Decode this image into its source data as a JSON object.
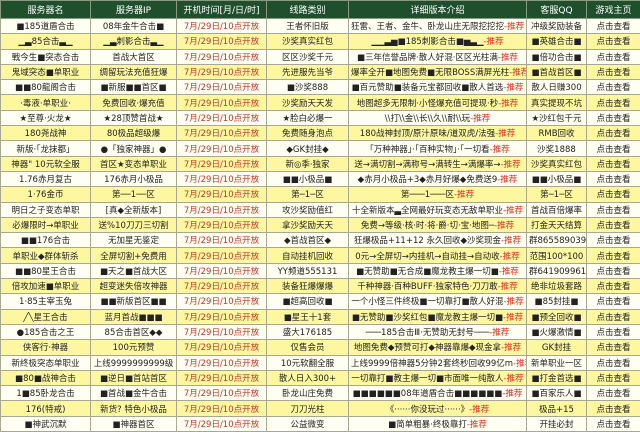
{
  "headers": [
    "服务器名",
    "服务器IP",
    "开机时间[月/日/时]",
    "线路类别",
    "详细版本介绍",
    "客服QQ",
    "游戏主页"
  ],
  "colors": {
    "header_bg": "#1f4f2c",
    "row_yellow": "#fdf8a0",
    "row_light": "#fffef2",
    "date": "#c0392b",
    "recommend": "#e0301e"
  },
  "recommend_label": "-推荐",
  "rows": [
    {
      "name": "■185道盾合击",
      "ip": "08年金牛合击■",
      "time": "7月/29日/10点开放",
      "line": "王者怀旧版",
      "desc": "狂雷、王者、金牛、卧龙山庄无限挖挖挖",
      "qq": "冲级奖励装备",
      "home": "点击查看"
    },
    {
      "name": "▁▃85合击▃▁",
      "ip": "▁▃刺影合击▃▁",
      "time": "7月/29日/10点开放",
      "line": "沙奖真实红包",
      "desc": "▁▁▃▅■185刺影合击■▅▃▁",
      "qq": "■英雄合击■",
      "home": "点击查看"
    },
    {
      "name": "戰今生■突态合击",
      "ip": "首战大首区",
      "time": "7月/29日/10点开放",
      "line": "区区沙奖千元",
      "desc": "■三年信誉品牌·散人好混·区区光柱满",
      "qq": "■倍功合击■",
      "home": "点击查看"
    },
    {
      "name": "鬼域突态■单职业",
      "ip": "绸留玩法充值狂爆",
      "time": "7月/29日/10点开放",
      "line": "先进服先当爷",
      "desc": "爆率全开■地图免费■无限BOSS满屏光柱",
      "qq": "■首战首区■",
      "home": "点击查看"
    },
    {
      "name": "■■80龍阁合击",
      "ip": "■新服■■首区■",
      "time": "7月/29日/10点开放",
      "line": "■沙奖888",
      "desc": "■百元赞助■装备元宝都回收■散人首选",
      "qq": "散人日赚300",
      "home": "点击查看"
    },
    {
      "name": "·毒液·单职业·",
      "ip": "免费回收·爆充值",
      "time": "7月/29日/10点开放",
      "line": "沙奖励天天发",
      "desc": "地图超多无限制·小怪爆充值可提现·秒",
      "qq": "真实提现不坑",
      "home": "点击查看"
    },
    {
      "name": "★至尊·火龙★",
      "ip": "★28顶赞首战★",
      "time": "7月/29日/10点开放",
      "line": "★脸白必爆一",
      "desc": "\\\\打\\\\金\\\\长\\\\久\\\\耐\\\\玩",
      "qq": "★沙红包千元",
      "home": "点击查看"
    },
    {
      "name": "180尧战神",
      "ip": "80极品超级爆",
      "time": "7月/29日/10点开放",
      "line": "免费随身泡点",
      "desc": "180战神封顶/原汁原味/道双虎/法强",
      "qq": "RMB回收",
      "home": "点击查看"
    },
    {
      "name": "新版·「龙抹都」",
      "ip": "●「独家神器」●",
      "time": "7月/29日/10点开放",
      "line": "◆GK封挂◆",
      "desc": "「万种神器」·「百种实物」·「一切看",
      "qq": "沙奖1888",
      "home": "点击查看"
    },
    {
      "name": "神器\" 10元软全服",
      "ip": "首区★变态单职业",
      "time": "7月/29日/10点开放",
      "line": "新◎季·独家",
      "desc": "送→满切割→满称号→满转生→满爆率→",
      "qq": "沙奖真实红包",
      "home": "点击查看"
    },
    {
      "name": "1.76赤月复古",
      "ip": "176赤月小极品",
      "time": "7月/29日/10点开放",
      "line": "■■小极品■",
      "desc": "◆赤月小极品+3◆赤月好爆◆免费送9",
      "qq": "■■小极品■",
      "home": "点击查看"
    },
    {
      "name": "1·76金币",
      "ip": "第──1──区",
      "time": "7月/29日/10点开放",
      "line": "第─1─区",
      "desc": "第───1───区",
      "qq": "第─1─区",
      "home": "点击查看"
    },
    {
      "name": "明日之子变态单职",
      "ip": "[真◆全新版本]",
      "time": "7月/29日/10点开放",
      "line": "攻沙奖励值红",
      "desc": "十全新版本▃全网最好玩变态无敌单职业",
      "qq": "首战百倍爆率",
      "home": "点击查看"
    },
    {
      "name": "必爆限时→单职业",
      "ip": "送%10刀刀三切割",
      "time": "7月/29日/10点开放",
      "line": "拿沙奖励天天",
      "desc": "免费→等级·核·时·将·爵·切·宝·地图─",
      "qq": "打金天天结算",
      "home": "点击查看"
    },
    {
      "name": "■■176合击",
      "ip": "无加星无鉴定",
      "time": "7月/29日/10点开放",
      "line": "◆首战首区◆",
      "desc": "狂爆极品+11+12 永久回收◆沙奖现金",
      "qq": "群865589039",
      "home": "点击查看"
    },
    {
      "name": "单职业◆群体斩杀",
      "ip": "全屏切割+免费用",
      "time": "7月/29日/10点开放",
      "line": "自动挂机回收",
      "desc": "0元→全屏切→内挂机→自动挂→自动收",
      "qq": "范围100*100",
      "home": "点击查看"
    },
    {
      "name": "■■80星王合击",
      "ip": "■天之■首战大区",
      "time": "7月/29日/10点开放",
      "line": "YY频道555131",
      "desc": "■无赞助■无合成■魔龙教主爆一切■",
      "qq": "群641909961",
      "home": "点击查看"
    },
    {
      "name": "倍攻加速■单职业",
      "ip": "超变迷失倍攻神器",
      "time": "7月/29日/10点开放",
      "line": "装备狂爆爆爆",
      "desc": "千种神器·百种BUFF·独家特色·刀刀敢",
      "qq": "绝非垃圾套路",
      "home": "点击查看"
    },
    {
      "name": "1·85主宰玉兔",
      "ip": "■■新版首区■■",
      "time": "7月/29日/10点开放",
      "line": "■超高回收■",
      "desc": "一个小怪三件终极■一切靠打■散人好混",
      "qq": "■85封挂■",
      "home": "点击查看"
    },
    {
      "name": "╱╲星王合击",
      "ip": "蓝月首战■■■",
      "time": "7月/29日/10点开放",
      "line": "■星王十1套",
      "desc": "■无赞助■沙奖红包■魔龙教主爆一切■",
      "qq": "■预全回收■",
      "home": "点击查看"
    },
    {
      "name": "●185合击之王",
      "ip": "85合击首区◆◆",
      "time": "7月/29日/10点开放",
      "line": "盛大176185",
      "desc": "───185合击Ⅲ·无赞助无封号───",
      "qq": "■火爆激情■",
      "home": "点击查看"
    },
    {
      "name": "侠客行·神器",
      "ip": "100元预赞",
      "time": "7月/29日/10点开放",
      "line": "仅售会员",
      "desc": "地图免费◆预赞可打◆神器靠爆◆现金拿",
      "qq": "GK封挂",
      "home": "点击查看"
    },
    {
      "name": "新终极突态单职业",
      "ip": "上线9999999999级",
      "time": "7月/29日/10点开放",
      "line": "10元软翻全服",
      "desc": "上线9999倍神器5分钟2套终秒回收99亿m",
      "qq": "新单职业一区",
      "home": "点击查看"
    },
    {
      "name": "■80■战神合击",
      "ip": "■逆日■首站首区",
      "time": "7月/29日/10点开放",
      "line": "散人日入300+",
      "desc": "一切靠打■教主爆一切■市面唯一纯散人",
      "qq": "■打金首选■",
      "home": "点击查看"
    },
    {
      "name": "1■85卧龙合击",
      "ip": "■首战■金牛合击",
      "time": "7月/29日/10点开放",
      "line": "卧龙山庄免费",
      "desc": "■■■■■■08年道盾合击■■■■■■",
      "qq": "■百家乐人■",
      "home": "点击查看"
    },
    {
      "name": "176(特戒)",
      "ip": "新货? 特色小极品",
      "time": "7月/29日/10点开放",
      "line": "刀刀光柱",
      "desc": "《······你没玩过······》",
      "qq": "极品+15",
      "home": "点击查看"
    },
    {
      "name": "■神武沉默",
      "ip": "■神器首区",
      "time": "7月/29日/10点开放",
      "line": "公益微变",
      "desc": "■简单粗暴·终极靠打",
      "qq": "开挂必封",
      "home": "点击查看"
    }
  ]
}
